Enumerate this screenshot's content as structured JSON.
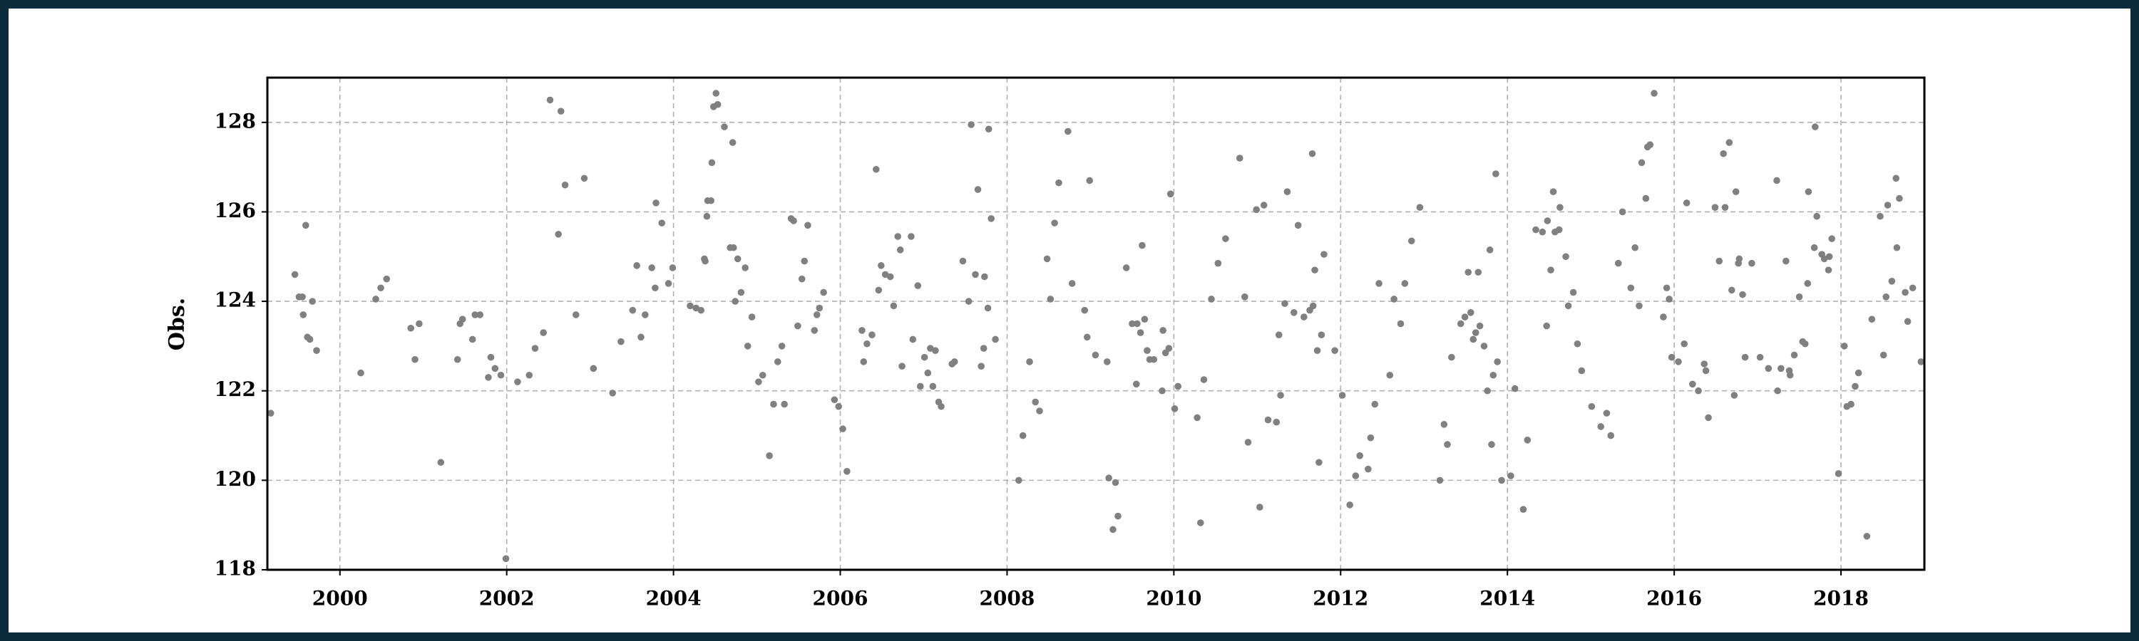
{
  "chart_data": {
    "type": "scatter",
    "ylabel": "Obs.",
    "color": "#808080",
    "grid": true,
    "xlim": [
      1999.13,
      2019.0
    ],
    "ylim": [
      118,
      129.0
    ],
    "xticks": [
      2000,
      2002,
      2004,
      2006,
      2008,
      2010,
      2012,
      2014,
      2016,
      2018
    ],
    "yticks": [
      118,
      120,
      122,
      124,
      126,
      128
    ],
    "x": [
      1999.17,
      1999.46,
      1999.51,
      1999.55,
      1999.56,
      1999.59,
      1999.61,
      1999.64,
      1999.67,
      1999.72,
      2000.25,
      2000.43,
      2000.49,
      2000.56,
      2000.85,
      2000.9,
      2000.95,
      2001.21,
      2001.41,
      2001.44,
      2001.47,
      2001.59,
      2001.62,
      2001.68,
      2001.78,
      2001.81,
      2001.86,
      2001.93,
      2001.99,
      2002.13,
      2002.27,
      2002.34,
      2002.44,
      2002.52,
      2002.62,
      2002.65,
      2002.7,
      2002.83,
      2002.93,
      2003.04,
      2003.27,
      2003.37,
      2003.51,
      2003.56,
      2003.61,
      2003.66,
      2003.74,
      2003.78,
      2003.79,
      2003.86,
      2003.94,
      2003.99,
      2004.2,
      2004.27,
      2004.33,
      2004.37,
      2004.38,
      2004.4,
      2004.41,
      2004.45,
      2004.46,
      2004.48,
      2004.53,
      2004.51,
      2004.61,
      2004.68,
      2004.71,
      2004.72,
      2004.74,
      2004.77,
      2004.81,
      2004.86,
      2004.89,
      2004.94,
      2005.02,
      2005.07,
      2005.15,
      2005.2,
      2005.25,
      2005.3,
      2005.33,
      2005.41,
      2005.44,
      2005.49,
      2005.54,
      2005.57,
      2005.61,
      2005.69,
      2005.72,
      2005.75,
      2005.8,
      2005.93,
      2005.98,
      2006.03,
      2006.08,
      2006.26,
      2006.28,
      2006.32,
      2006.38,
      2006.43,
      2006.46,
      2006.49,
      2006.54,
      2006.6,
      2006.64,
      2006.69,
      2006.72,
      2006.74,
      2006.85,
      2006.87,
      2006.93,
      2006.96,
      2007.01,
      2007.05,
      2007.08,
      2007.11,
      2007.14,
      2007.18,
      2007.21,
      2007.34,
      2007.37,
      2007.47,
      2007.54,
      2007.57,
      2007.62,
      2007.65,
      2007.69,
      2007.72,
      2007.73,
      2007.77,
      2007.78,
      2007.81,
      2007.86,
      2008.14,
      2008.19,
      2008.27,
      2008.34,
      2008.39,
      2008.48,
      2008.52,
      2008.57,
      2008.62,
      2008.73,
      2008.78,
      2008.93,
      2008.96,
      2008.99,
      2009.06,
      2009.2,
      2009.22,
      2009.27,
      2009.3,
      2009.33,
      2009.43,
      2009.5,
      2009.55,
      2009.56,
      2009.6,
      2009.62,
      2009.65,
      2009.68,
      2009.71,
      2009.76,
      2009.86,
      2009.87,
      2009.9,
      2009.94,
      2009.96,
      2010.01,
      2010.05,
      2010.28,
      2010.32,
      2010.36,
      2010.45,
      2010.53,
      2010.62,
      2010.79,
      2010.85,
      2010.89,
      2010.99,
      2011.03,
      2011.08,
      2011.13,
      2011.23,
      2011.26,
      2011.28,
      2011.33,
      2011.36,
      2011.44,
      2011.49,
      2011.56,
      2011.63,
      2011.66,
      2011.67,
      2011.69,
      2011.72,
      2011.74,
      2011.77,
      2011.8,
      2011.93,
      2012.02,
      2012.11,
      2012.18,
      2012.23,
      2012.33,
      2012.36,
      2012.41,
      2012.46,
      2012.59,
      2012.64,
      2012.72,
      2012.77,
      2012.85,
      2012.95,
      2013.19,
      2013.24,
      2013.28,
      2013.33,
      2013.44,
      2013.49,
      2013.53,
      2013.56,
      2013.59,
      2013.62,
      2013.65,
      2013.67,
      2013.72,
      2013.76,
      2013.79,
      2013.81,
      2013.83,
      2013.86,
      2013.88,
      2013.93,
      2014.04,
      2014.09,
      2014.19,
      2014.24,
      2014.34,
      2014.42,
      2014.47,
      2014.48,
      2014.52,
      2014.55,
      2014.57,
      2014.62,
      2014.63,
      2014.7,
      2014.73,
      2014.79,
      2014.84,
      2014.89,
      2015.01,
      2015.12,
      2015.19,
      2015.24,
      2015.33,
      2015.38,
      2015.48,
      2015.53,
      2015.58,
      2015.61,
      2015.66,
      2015.68,
      2015.71,
      2015.76,
      2015.87,
      2015.91,
      2015.94,
      2015.97,
      2016.05,
      2016.12,
      2016.15,
      2016.22,
      2016.29,
      2016.36,
      2016.38,
      2016.41,
      2016.49,
      2016.54,
      2016.59,
      2016.61,
      2016.66,
      2016.69,
      2016.72,
      2016.74,
      2016.77,
      2016.78,
      2016.82,
      2016.85,
      2016.93,
      2017.03,
      2017.13,
      2017.23,
      2017.24,
      2017.28,
      2017.34,
      2017.38,
      2017.39,
      2017.44,
      2017.5,
      2017.54,
      2017.57,
      2017.6,
      2017.61,
      2017.68,
      2017.69,
      2017.71,
      2017.77,
      2017.8,
      2017.85,
      2017.86,
      2017.89,
      2017.97,
      2018.04,
      2018.07,
      2018.12,
      2018.17,
      2018.21,
      2018.31,
      2018.37,
      2018.47,
      2018.51,
      2018.54,
      2018.56,
      2018.61,
      2018.66,
      2018.67,
      2018.7,
      2018.77,
      2018.8,
      2018.86,
      2018.96
    ],
    "values": [
      121.5,
      124.6,
      124.1,
      124.1,
      123.7,
      125.7,
      123.2,
      123.15,
      124.0,
      122.9,
      122.4,
      124.05,
      124.3,
      124.5,
      123.4,
      122.7,
      123.5,
      120.4,
      122.7,
      123.5,
      123.6,
      123.15,
      123.7,
      123.7,
      122.3,
      122.75,
      122.5,
      122.35,
      118.25,
      122.2,
      122.35,
      122.95,
      123.3,
      128.5,
      125.5,
      128.25,
      126.6,
      123.7,
      126.75,
      122.5,
      121.95,
      123.1,
      123.8,
      124.8,
      123.2,
      123.7,
      124.75,
      124.3,
      126.2,
      125.75,
      124.4,
      124.75,
      123.9,
      123.85,
      123.8,
      124.95,
      124.9,
      125.9,
      126.25,
      126.25,
      127.1,
      128.35,
      128.4,
      128.65,
      127.9,
      125.2,
      127.55,
      125.2,
      124.0,
      124.95,
      124.2,
      124.75,
      123.0,
      123.65,
      122.2,
      122.35,
      120.55,
      121.7,
      122.65,
      123.0,
      121.7,
      125.85,
      125.8,
      123.45,
      124.5,
      124.9,
      125.7,
      123.35,
      123.7,
      123.85,
      124.2,
      121.8,
      121.65,
      121.15,
      120.2,
      123.35,
      122.65,
      123.05,
      123.25,
      126.95,
      124.25,
      124.8,
      124.6,
      124.55,
      123.9,
      125.45,
      125.15,
      122.55,
      125.45,
      123.15,
      124.35,
      122.1,
      122.75,
      122.4,
      122.95,
      122.1,
      122.9,
      121.75,
      121.65,
      122.6,
      122.65,
      124.9,
      124.0,
      127.95,
      124.6,
      126.5,
      122.55,
      122.95,
      124.55,
      123.85,
      127.85,
      125.85,
      123.15,
      120.0,
      121.0,
      122.65,
      121.75,
      121.55,
      124.95,
      124.05,
      125.75,
      126.65,
      127.8,
      124.4,
      123.8,
      123.2,
      126.7,
      122.8,
      122.65,
      120.05,
      118.9,
      119.95,
      119.2,
      124.75,
      123.5,
      122.15,
      123.5,
      123.3,
      125.25,
      123.6,
      122.9,
      122.7,
      122.7,
      122.0,
      123.35,
      122.85,
      122.95,
      126.4,
      121.6,
      122.1,
      121.4,
      119.05,
      122.25,
      124.05,
      124.85,
      125.4,
      127.2,
      124.1,
      120.85,
      126.05,
      119.4,
      126.15,
      121.35,
      121.3,
      123.25,
      121.9,
      123.95,
      126.45,
      123.75,
      125.7,
      123.65,
      123.8,
      127.3,
      123.9,
      124.7,
      122.9,
      120.4,
      123.25,
      125.05,
      122.9,
      121.9,
      119.45,
      120.1,
      120.55,
      120.25,
      120.95,
      121.7,
      124.4,
      122.35,
      124.05,
      123.5,
      124.4,
      125.35,
      126.1,
      120.0,
      121.25,
      120.8,
      122.75,
      123.5,
      123.65,
      124.65,
      123.75,
      123.15,
      123.3,
      124.65,
      123.45,
      123.0,
      122.0,
      125.15,
      120.8,
      122.35,
      126.85,
      122.65,
      120.0,
      120.1,
      122.05,
      119.35,
      120.9,
      125.6,
      125.55,
      123.45,
      125.8,
      124.7,
      126.45,
      125.55,
      125.6,
      126.1,
      125.0,
      123.9,
      124.2,
      123.05,
      122.45,
      121.65,
      121.2,
      121.5,
      121.0,
      124.85,
      126.0,
      124.3,
      125.2,
      123.9,
      127.1,
      126.3,
      127.45,
      127.5,
      128.65,
      123.65,
      124.3,
      124.05,
      122.75,
      122.65,
      123.05,
      126.2,
      122.15,
      122.0,
      122.6,
      122.45,
      121.4,
      126.1,
      124.9,
      127.3,
      126.1,
      127.55,
      124.25,
      121.9,
      126.45,
      124.85,
      124.95,
      124.15,
      122.75,
      124.85,
      122.75,
      122.5,
      126.7,
      122.0,
      122.5,
      124.9,
      122.45,
      122.35,
      122.8,
      124.1,
      123.1,
      123.05,
      124.4,
      126.45,
      125.2,
      127.9,
      125.9,
      125.05,
      124.95,
      124.7,
      125.0,
      125.4,
      120.15,
      123.0,
      121.65,
      121.7,
      122.1,
      122.4,
      118.75,
      123.6,
      125.9,
      122.8,
      124.1,
      126.15,
      124.45,
      126.75,
      125.2,
      126.3,
      124.2,
      123.55,
      124.3,
      122.65
    ]
  }
}
